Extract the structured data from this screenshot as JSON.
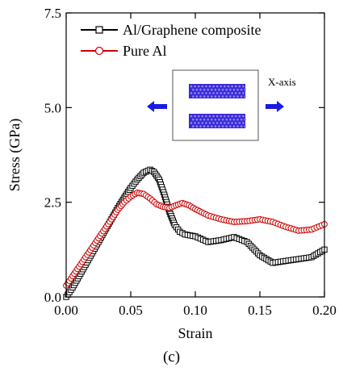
{
  "caption": "(c)",
  "chart_data": {
    "type": "scatter",
    "xlabel": "Strain",
    "ylabel": "Stress (GPa)",
    "xlim": [
      0.0,
      0.2
    ],
    "ylim": [
      0.0,
      7.5
    ],
    "x_ticks": [
      "0.00",
      "0.05",
      "0.10",
      "0.15",
      "0.20"
    ],
    "y_ticks": [
      "0.0",
      "2.5",
      "5.0",
      "7.5"
    ],
    "grid": false,
    "legend_position": "top-left",
    "inset": {
      "label": "X-axis",
      "arrow_color": "#1a1ae6",
      "sheet_color": "#3a2ad6"
    },
    "series": [
      {
        "name": "Al/Graphene composite",
        "marker": "square-open",
        "color": "#000000",
        "points": [
          [
            0.0,
            0.0
          ],
          [
            0.005,
            0.25
          ],
          [
            0.01,
            0.55
          ],
          [
            0.015,
            0.85
          ],
          [
            0.02,
            1.15
          ],
          [
            0.025,
            1.45
          ],
          [
            0.03,
            1.75
          ],
          [
            0.035,
            2.05
          ],
          [
            0.04,
            2.35
          ],
          [
            0.045,
            2.62
          ],
          [
            0.05,
            2.88
          ],
          [
            0.055,
            3.1
          ],
          [
            0.06,
            3.28
          ],
          [
            0.065,
            3.36
          ],
          [
            0.068,
            3.3
          ],
          [
            0.072,
            3.1
          ],
          [
            0.076,
            2.7
          ],
          [
            0.08,
            2.25
          ],
          [
            0.084,
            1.9
          ],
          [
            0.088,
            1.72
          ],
          [
            0.092,
            1.65
          ],
          [
            0.1,
            1.6
          ],
          [
            0.11,
            1.45
          ],
          [
            0.12,
            1.5
          ],
          [
            0.13,
            1.58
          ],
          [
            0.14,
            1.45
          ],
          [
            0.15,
            1.1
          ],
          [
            0.16,
            0.9
          ],
          [
            0.17,
            0.95
          ],
          [
            0.18,
            1.0
          ],
          [
            0.19,
            1.05
          ],
          [
            0.2,
            1.25
          ]
        ]
      },
      {
        "name": "Pure Al",
        "marker": "circle-open",
        "color": "#cc0000",
        "points": [
          [
            0.0,
            0.3
          ],
          [
            0.005,
            0.55
          ],
          [
            0.01,
            0.8
          ],
          [
            0.015,
            1.05
          ],
          [
            0.02,
            1.3
          ],
          [
            0.025,
            1.55
          ],
          [
            0.03,
            1.8
          ],
          [
            0.035,
            2.05
          ],
          [
            0.04,
            2.3
          ],
          [
            0.045,
            2.5
          ],
          [
            0.05,
            2.65
          ],
          [
            0.055,
            2.75
          ],
          [
            0.06,
            2.72
          ],
          [
            0.065,
            2.6
          ],
          [
            0.07,
            2.45
          ],
          [
            0.075,
            2.38
          ],
          [
            0.08,
            2.35
          ],
          [
            0.085,
            2.42
          ],
          [
            0.09,
            2.48
          ],
          [
            0.095,
            2.42
          ],
          [
            0.1,
            2.32
          ],
          [
            0.11,
            2.15
          ],
          [
            0.12,
            2.05
          ],
          [
            0.13,
            1.98
          ],
          [
            0.14,
            2.0
          ],
          [
            0.15,
            2.05
          ],
          [
            0.16,
            1.98
          ],
          [
            0.17,
            1.85
          ],
          [
            0.18,
            1.75
          ],
          [
            0.19,
            1.78
          ],
          [
            0.2,
            1.92
          ]
        ]
      }
    ]
  }
}
